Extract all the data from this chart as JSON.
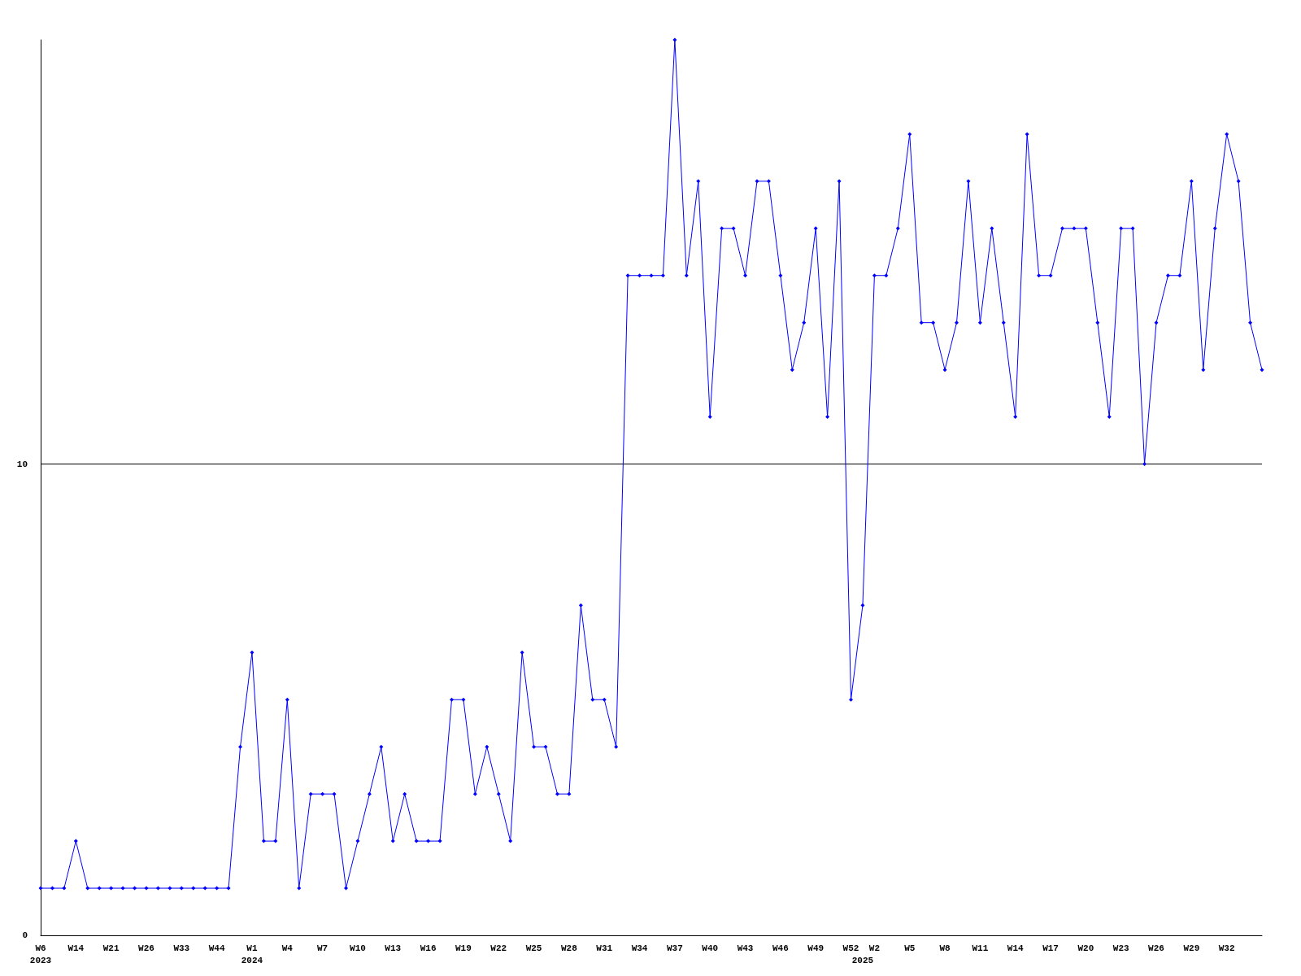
{
  "chart_data": {
    "type": "line",
    "categories": [
      "W6\n2023",
      null,
      null,
      "W14",
      null,
      null,
      "W21",
      null,
      null,
      "W26",
      null,
      null,
      "W33",
      null,
      null,
      "W44",
      null,
      null,
      "W1\n2024",
      null,
      null,
      "W4",
      null,
      null,
      "W7",
      null,
      null,
      "W10",
      null,
      null,
      "W13",
      null,
      null,
      "W16",
      null,
      null,
      "W19",
      null,
      null,
      "W22",
      null,
      null,
      "W25",
      null,
      null,
      "W28",
      null,
      null,
      "W31",
      null,
      null,
      "W34",
      null,
      null,
      "W37",
      null,
      null,
      "W40",
      null,
      null,
      "W43",
      null,
      null,
      "W46",
      null,
      null,
      "W49",
      null,
      null,
      "W52",
      "\n2025",
      "W2",
      null,
      null,
      "W5",
      null,
      null,
      "W8",
      null,
      null,
      "W11",
      null,
      null,
      "W14",
      null,
      null,
      "W17",
      null,
      null,
      "W20",
      null,
      null,
      "W23",
      null,
      null,
      "W26",
      null,
      null,
      "W29",
      null,
      null,
      "W32",
      null,
      null,
      null
    ],
    "series": [
      {
        "color": "#0000ff",
        "values": [
          1,
          1,
          1,
          2,
          1,
          1,
          1,
          1,
          1,
          1,
          1,
          1,
          1,
          1,
          1,
          1,
          1,
          4,
          6,
          2,
          2,
          5,
          1,
          3,
          3,
          3,
          1,
          2,
          3,
          4,
          2,
          3,
          2,
          2,
          2,
          5,
          5,
          3,
          4,
          3,
          2,
          6,
          4,
          4,
          3,
          3,
          7,
          5,
          5,
          4,
          14,
          14,
          14,
          14,
          19,
          14,
          16,
          11,
          15,
          15,
          14,
          16,
          16,
          14,
          12,
          13,
          15,
          11,
          16,
          5,
          7,
          14,
          14,
          15,
          17,
          13,
          13,
          12,
          13,
          16,
          13,
          15,
          13,
          11,
          17,
          14,
          14,
          15,
          15,
          15,
          13,
          11,
          15,
          15,
          10,
          13,
          14,
          14,
          16,
          12,
          15,
          17,
          16,
          13,
          12
        ]
      }
    ],
    "ylim": [
      0,
      19
    ],
    "yticks": [
      0,
      10
    ],
    "grid": "y",
    "marker": "diamond",
    "line_style": "solid"
  }
}
